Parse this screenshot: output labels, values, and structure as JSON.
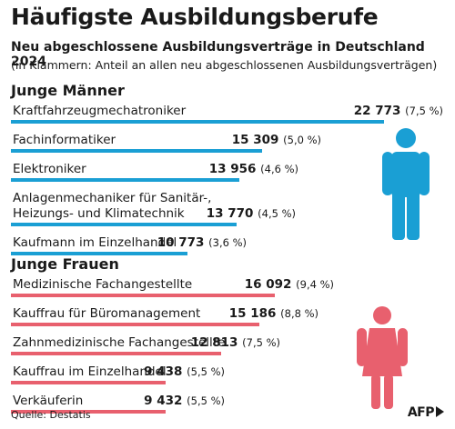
{
  "title": "Häufigste Ausbildungsberufe",
  "subtitle": "Neu abgeschlossene Ausbildungsverträge in Deutschland 2024",
  "note": "(in Klammern: Anteil an allen neu abgeschlossenen Ausbildungsverträgen)",
  "source": "Quelle: Destatis",
  "logo": "AFP",
  "colors": {
    "men": "#1a9fd4",
    "women": "#e8606e"
  },
  "icons": {
    "men": "male-figure-icon",
    "women": "female-figure-icon"
  },
  "chart_data": [
    {
      "type": "bar",
      "title": "Junge Männer",
      "categories": [
        "Kraftfahrzeugmechatroniker",
        "Fachinformatiker",
        "Elektroniker",
        "Anlagenmechaniker für Sanitär-, Heizungs- und Klimatechnik",
        "Kaufmann im Einzelhandel"
      ],
      "label_lines": [
        [
          "Kraftfahrzeugmechatroniker"
        ],
        [
          "Fachinformatiker"
        ],
        [
          "Elektroniker"
        ],
        [
          "Anlagenmechaniker für Sanitär-,",
          "Heizungs- und Klimatechnik"
        ],
        [
          "Kaufmann im Einzelhandel"
        ]
      ],
      "values": [
        22773,
        15309,
        13956,
        13770,
        10773
      ],
      "value_labels": [
        "22 773",
        "15 309",
        "13 956",
        "13 770",
        "10 773"
      ],
      "shares": [
        "(7,5 %)",
        "(5,0 %)",
        "(4,6 %)",
        "(4,5 %)",
        "(3,6 %)"
      ]
    },
    {
      "type": "bar",
      "title": "Junge Frauen",
      "categories": [
        "Medizinische Fachangestellte",
        "Kauffrau für Büromanagement",
        "Zahnmedizinische Fachangestellte",
        "Kauffrau im Einzelhandel",
        "Verkäuferin"
      ],
      "label_lines": [
        [
          "Medizinische Fachangestellte"
        ],
        [
          "Kauffrau für Büromanagement"
        ],
        [
          "Zahnmedizinische Fachangestellte"
        ],
        [
          "Kauffrau im Einzelhandel"
        ],
        [
          "Verkäuferin"
        ]
      ],
      "values": [
        16092,
        15186,
        12813,
        9438,
        9432
      ],
      "value_labels": [
        "16 092",
        "15 186",
        "12 813",
        "9 438",
        "9 432"
      ],
      "shares": [
        "(9,4 %)",
        "(8,8 %)",
        "(7,5 %)",
        "(5,5 %)",
        "(5,5 %)"
      ]
    }
  ]
}
